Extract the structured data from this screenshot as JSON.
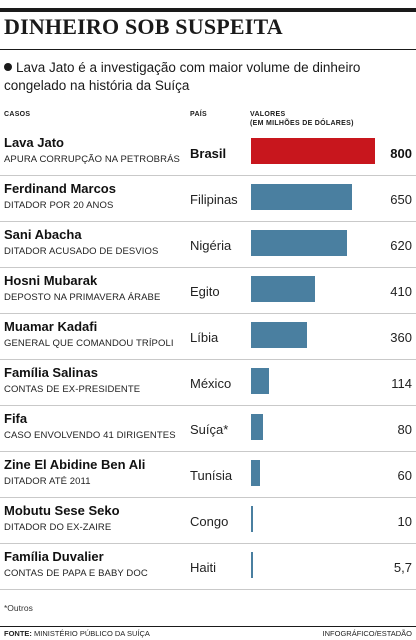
{
  "header": {
    "title": "DINHEIRO SOB SUSPEITA",
    "intro": "Lava Jato é a investigação com maior volume de dinheiro congelado na história da Suíça"
  },
  "columns": {
    "cases": "CASOS",
    "country": "PAÍS",
    "values_line1": "VALORES",
    "values_line2": "(EM MILHÕES DE DÓLARES)"
  },
  "chart_data": {
    "type": "bar",
    "orientation": "horizontal",
    "unit": "milhões de dólares",
    "xlim": [
      0,
      800
    ],
    "rows": [
      {
        "name": "Lava Jato",
        "desc": "Apura corrupção na Petrobrás",
        "country": "Brasil",
        "value": 800,
        "label": "800",
        "highlight": true
      },
      {
        "name": "Ferdinand Marcos",
        "desc": "Ditador por 20 anos",
        "country": "Filipinas",
        "value": 650,
        "label": "650",
        "highlight": false
      },
      {
        "name": "Sani Abacha",
        "desc": "Ditador acusado de desvios",
        "country": "Nigéria",
        "value": 620,
        "label": "620",
        "highlight": false
      },
      {
        "name": "Hosni Mubarak",
        "desc": "Deposto na primavera árabe",
        "country": "Egito",
        "value": 410,
        "label": "410",
        "highlight": false
      },
      {
        "name": "Muamar Kadafi",
        "desc": "General que comandou Trípoli",
        "country": "Líbia",
        "value": 360,
        "label": "360",
        "highlight": false
      },
      {
        "name": "Família Salinas",
        "desc": "Contas de ex-presidente",
        "country": "México",
        "value": 114,
        "label": "114",
        "highlight": false
      },
      {
        "name": "Fifa",
        "desc": "Caso envolvendo 41 dirigentes",
        "country": "Suíça*",
        "value": 80,
        "label": "80",
        "highlight": false
      },
      {
        "name": "Zine El Abidine Ben Ali",
        "desc": "Ditador até 2011",
        "country": "Tunísia",
        "value": 60,
        "label": "60",
        "highlight": false
      },
      {
        "name": "Mobutu Sese Seko",
        "desc": "Ditador do ex-Zaire",
        "country": "Congo",
        "value": 10,
        "label": "10",
        "highlight": false
      },
      {
        "name": "Família Duvalier",
        "desc": "Contas de Papa e Baby Doc",
        "country": "Haiti",
        "value": 5.7,
        "label": "5,7",
        "highlight": false
      }
    ],
    "colors": {
      "highlight": "#c8161d",
      "default": "#4a7fa0"
    }
  },
  "footer": {
    "note": "*Outros",
    "source_label": "FONTE:",
    "source_text": "MINISTÉRIO PÚBLICO DA SUÍÇA",
    "credit": "INFOGRÁFICO/ESTADÃO"
  }
}
